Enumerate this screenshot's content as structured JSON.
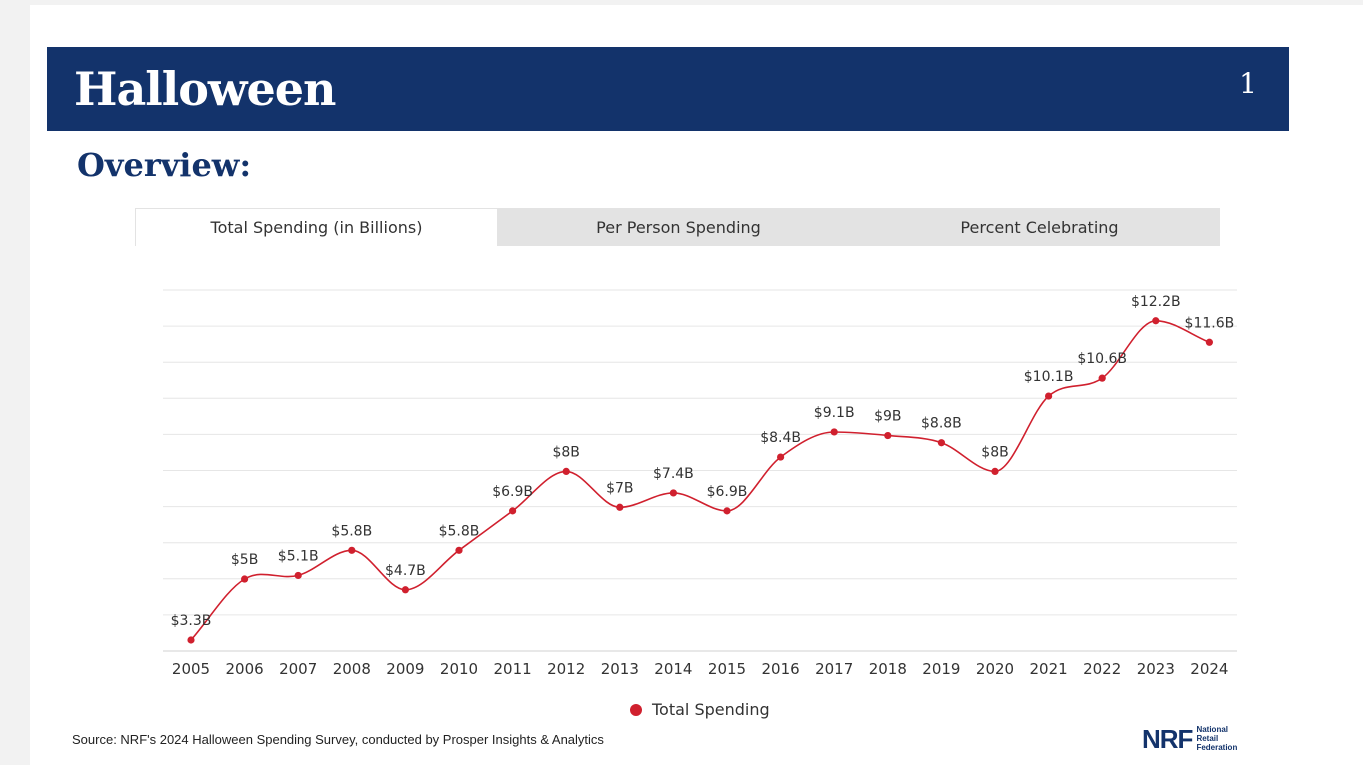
{
  "header": {
    "title": "Halloween",
    "page_number": "1"
  },
  "subtitle": "Overview:",
  "tabs": [
    {
      "label": "Total Spending (in Billions)",
      "active": true
    },
    {
      "label": "Per Person Spending",
      "active": false
    },
    {
      "label": "Percent Celebrating",
      "active": false
    }
  ],
  "chart_data": {
    "type": "line",
    "categories": [
      "2005",
      "2006",
      "2007",
      "2008",
      "2009",
      "2010",
      "2011",
      "2012",
      "2013",
      "2014",
      "2015",
      "2016",
      "2017",
      "2018",
      "2019",
      "2020",
      "2021",
      "2022",
      "2023",
      "2024"
    ],
    "series": [
      {
        "name": "Total Spending",
        "values": [
          3.3,
          5,
          5.1,
          5.8,
          4.7,
          5.8,
          6.9,
          8,
          7,
          7.4,
          6.9,
          8.4,
          9.1,
          9,
          8.8,
          8,
          10.1,
          10.6,
          12.2,
          11.6
        ],
        "data_labels": [
          "$3.3B",
          "$5B",
          "$5.1B",
          "$5.8B",
          "$4.7B",
          "$5.8B",
          "$6.9B",
          "$8B",
          "$7B",
          "$7.4B",
          "$6.9B",
          "$8.4B",
          "$9.1B",
          "$9B",
          "$8.8B",
          "$8B",
          "$10.1B",
          "$10.6B",
          "$12.2B",
          "$11.6B"
        ],
        "color": "#d0202e"
      }
    ],
    "ylim": [
      2.5,
      12.5
    ],
    "grid": true,
    "legend": "bottom-center"
  },
  "source": "Source: NRF's 2024 Halloween Spending Survey, conducted by Prosper Insights & Analytics",
  "logo": {
    "mark": "NRF",
    "words": [
      "National",
      "Retail",
      "Federation"
    ]
  }
}
